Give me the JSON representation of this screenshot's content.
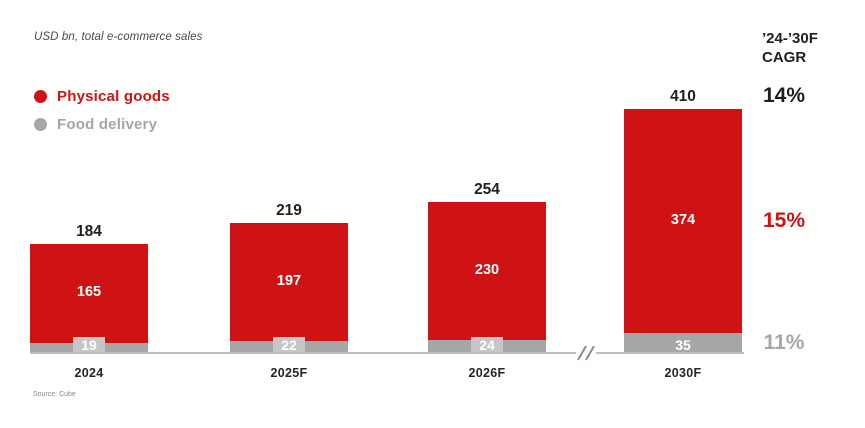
{
  "title": "USD bn, total e-commerce sales",
  "legend": {
    "items": [
      {
        "label": "Physical goods",
        "color": "#cf1315"
      },
      {
        "label": "Food delivery",
        "color": "#a6a6a6"
      }
    ]
  },
  "cagr": {
    "header_line1": "’24-’30F",
    "header_line2": "CAGR",
    "values": [
      {
        "label": "14%",
        "applies_to": "Total",
        "color": "#1f1f1f"
      },
      {
        "label": "15%",
        "applies_to": "Physical goods",
        "color": "#cf1315"
      },
      {
        "label": "11%",
        "applies_to": "Food delivery",
        "color": "#a6a6a6"
      }
    ]
  },
  "source": "Source: Cube",
  "chart_data": {
    "type": "bar",
    "stacked": true,
    "title": "USD bn, total e-commerce sales",
    "unit": "USD bn",
    "categories": [
      "2024",
      "2025F",
      "2026F",
      "2030F"
    ],
    "series": [
      {
        "name": "Physical goods",
        "color": "#cf1315",
        "values": [
          165,
          197,
          230,
          374
        ]
      },
      {
        "name": "Food delivery",
        "color": "#a6a6a6",
        "values": [
          19,
          22,
          24,
          35
        ]
      }
    ],
    "totals": [
      184,
      219,
      254,
      410
    ],
    "cagr_24_30f": {
      "total": "14%",
      "physical_goods": "15%",
      "food_delivery": "11%"
    },
    "axis_break_between": [
      "2026F",
      "2030F"
    ],
    "legend_position": "top-left",
    "grid": false,
    "ylim": [
      0,
      430
    ]
  }
}
